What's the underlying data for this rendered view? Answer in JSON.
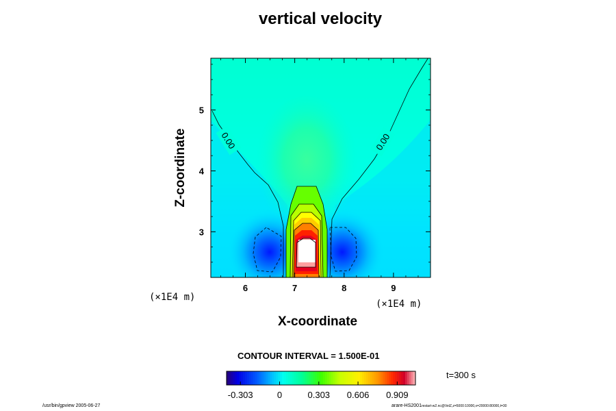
{
  "chart_data": {
    "type": "contour",
    "title": "vertical velocity",
    "xlabel": "X-coordinate",
    "ylabel": "Z-coordinate",
    "x_scale_label": "(×1E4  m)",
    "y_scale_label": "(×1E4  m)",
    "xlim": [
      5.3,
      9.75
    ],
    "ylim": [
      2.25,
      5.85
    ],
    "x_ticks": [
      6,
      7,
      8,
      9
    ],
    "y_ticks": [
      3,
      4,
      5
    ],
    "x_tick_labels": [
      "6",
      "7",
      "8",
      "9"
    ],
    "y_tick_labels": [
      "3",
      "4",
      "5"
    ],
    "contour_interval_text": "CONTOUR INTERVAL = 1.500E-01",
    "contour_line_labels": [
      "0.00",
      "0.00"
    ],
    "colorbar": {
      "min": -0.41,
      "max": 1.05,
      "tick_values": [
        -0.303,
        0,
        0.303,
        0.606,
        0.909
      ],
      "tick_labels": [
        "-0.303",
        "0",
        "0.303",
        "0.606",
        "0.909"
      ]
    },
    "time_label": "t=300 s",
    "features": [
      {
        "kind": "updraft",
        "x_center": 7.2,
        "max_value": 1.05
      },
      {
        "kind": "downdraft",
        "x_center": 6.55,
        "min_value": -0.41
      },
      {
        "kind": "downdraft",
        "x_center": 7.85,
        "min_value": -0.41
      }
    ]
  },
  "footer": {
    "left": "/usr/bin/gpview 2005-06-27",
    "right_main": "arare-HS2001",
    "right_small": "restart-w2.nc@VelZ,z=5000:10000,x=20000:80000,t=30"
  }
}
